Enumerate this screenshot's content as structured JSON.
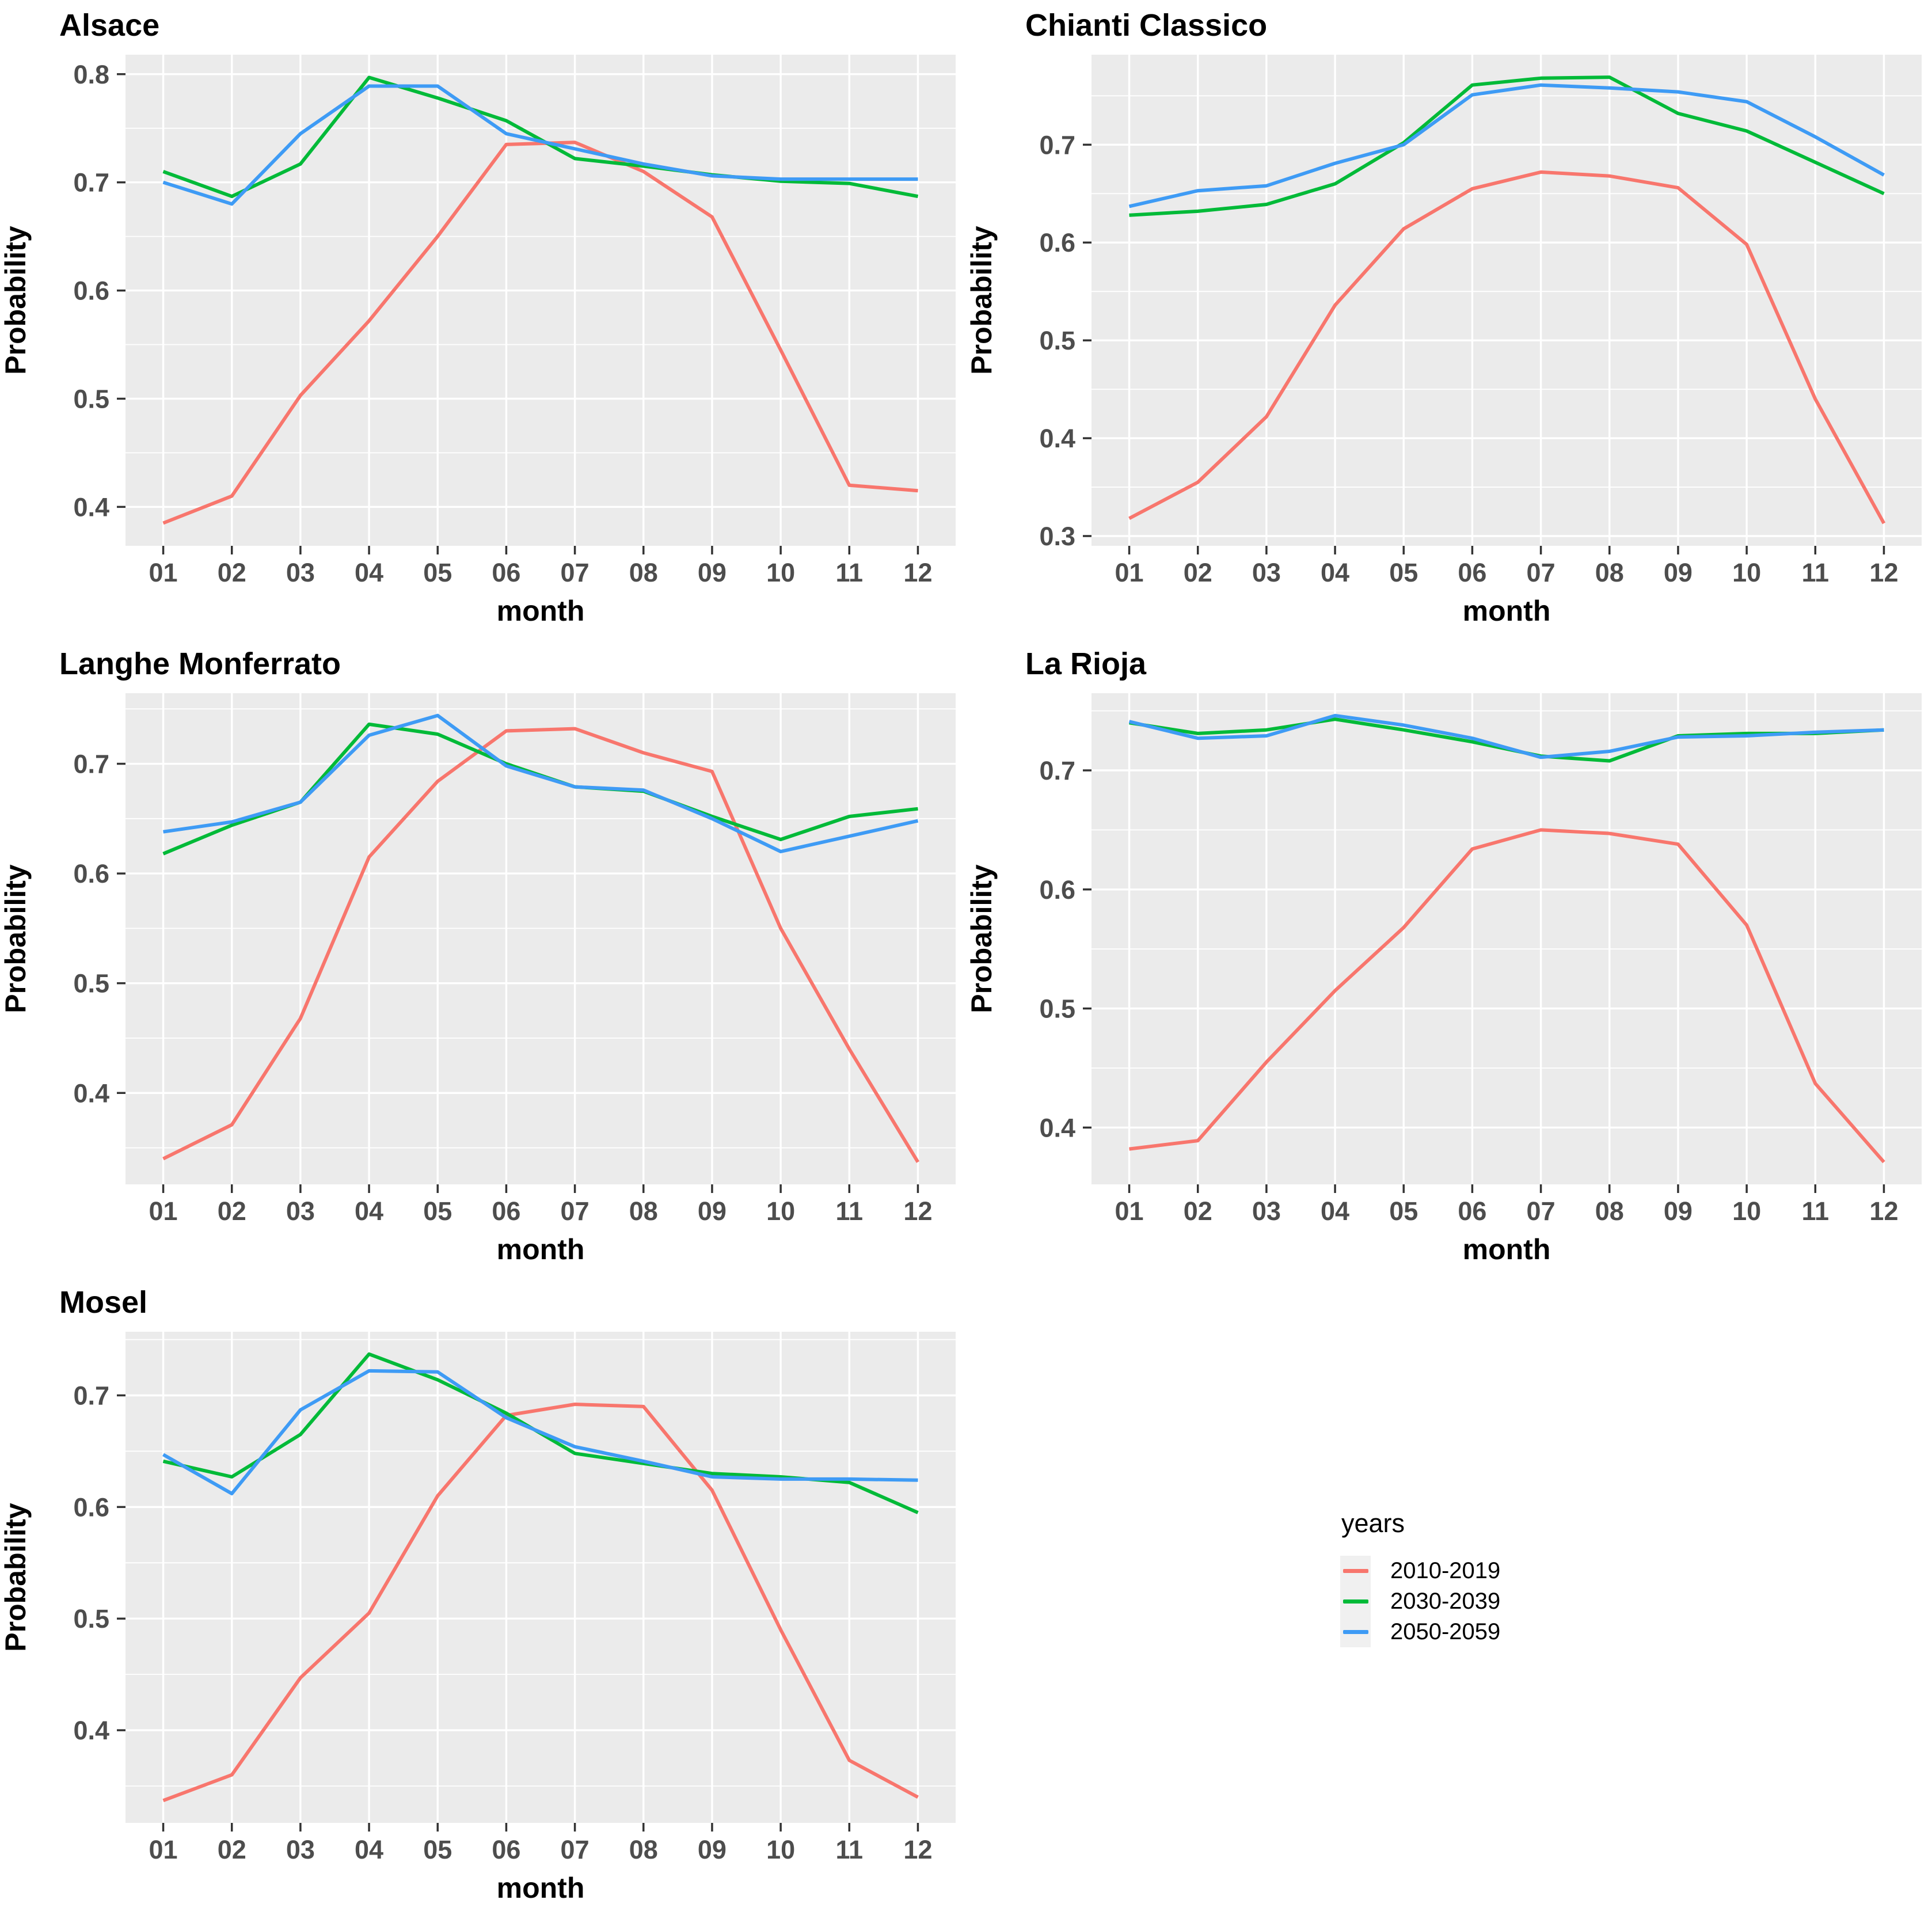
{
  "page": {
    "background": "#FFFFFF"
  },
  "style": {
    "panel_fill": "#EBEBEB",
    "grid_color": "#FFFFFF",
    "axis_tick_color": "#333333",
    "tick_label_color": "#4D4D4D",
    "title_color": "#000000"
  },
  "legend": {
    "title": "years",
    "key_fill": "#F0F0F0",
    "entries": [
      {
        "label": "2010-2019",
        "color": "#F8766D"
      },
      {
        "label": "2030-2039",
        "color": "#00BA38"
      },
      {
        "label": "2050-2059",
        "color": "#3E9BF5"
      }
    ]
  },
  "chart_data": [
    {
      "type": "line",
      "title": "Alsace",
      "xlabel": "month",
      "ylabel": "Probability",
      "categories": [
        "01",
        "02",
        "03",
        "04",
        "05",
        "06",
        "07",
        "08",
        "09",
        "10",
        "11",
        "12"
      ],
      "yticks": [
        0.4,
        0.5,
        0.6,
        0.7,
        0.8
      ],
      "ylim": [
        0.364,
        0.818
      ],
      "legend_position": "none",
      "grid": true,
      "series": [
        {
          "name": "2010-2019",
          "color": "#F8766D",
          "values": [
            0.385,
            0.41,
            0.503,
            0.572,
            0.65,
            0.735,
            0.737,
            0.71,
            0.668,
            0.545,
            0.42,
            0.415
          ]
        },
        {
          "name": "2030-2039",
          "color": "#00BA38",
          "values": [
            0.71,
            0.687,
            0.717,
            0.797,
            0.778,
            0.757,
            0.722,
            0.715,
            0.707,
            0.701,
            0.699,
            0.687
          ]
        },
        {
          "name": "2050-2059",
          "color": "#3E9BF5",
          "values": [
            0.7,
            0.68,
            0.745,
            0.789,
            0.789,
            0.745,
            0.731,
            0.717,
            0.706,
            0.703,
            0.703,
            0.703
          ]
        }
      ]
    },
    {
      "type": "line",
      "title": "Chianti Classico",
      "xlabel": "month",
      "ylabel": "Probability",
      "categories": [
        "01",
        "02",
        "03",
        "04",
        "05",
        "06",
        "07",
        "08",
        "09",
        "10",
        "11",
        "12"
      ],
      "yticks": [
        0.3,
        0.4,
        0.5,
        0.6,
        0.7
      ],
      "ylim": [
        0.29,
        0.792
      ],
      "legend_position": "none",
      "grid": true,
      "series": [
        {
          "name": "2010-2019",
          "color": "#F8766D",
          "values": [
            0.318,
            0.355,
            0.422,
            0.536,
            0.614,
            0.655,
            0.672,
            0.668,
            0.656,
            0.598,
            0.44,
            0.313
          ]
        },
        {
          "name": "2030-2039",
          "color": "#00BA38",
          "values": [
            0.628,
            0.632,
            0.639,
            0.66,
            0.702,
            0.761,
            0.768,
            0.769,
            0.732,
            0.714,
            0.682,
            0.65
          ]
        },
        {
          "name": "2050-2059",
          "color": "#3E9BF5",
          "values": [
            0.637,
            0.653,
            0.658,
            0.681,
            0.7,
            0.751,
            0.761,
            0.758,
            0.754,
            0.744,
            0.708,
            0.669
          ]
        }
      ]
    },
    {
      "type": "line",
      "title": "Langhe Monferrato",
      "xlabel": "month",
      "ylabel": "Probability",
      "categories": [
        "01",
        "02",
        "03",
        "04",
        "05",
        "06",
        "07",
        "08",
        "09",
        "10",
        "11",
        "12"
      ],
      "yticks": [
        0.4,
        0.5,
        0.6,
        0.7
      ],
      "ylim": [
        0.3167,
        0.7643
      ],
      "legend_position": "none",
      "grid": true,
      "series": [
        {
          "name": "2010-2019",
          "color": "#F8766D",
          "values": [
            0.34,
            0.371,
            0.468,
            0.615,
            0.684,
            0.73,
            0.732,
            0.71,
            0.693,
            0.55,
            0.44,
            0.337
          ]
        },
        {
          "name": "2030-2039",
          "color": "#00BA38",
          "values": [
            0.618,
            0.644,
            0.665,
            0.736,
            0.727,
            0.7,
            0.679,
            0.675,
            0.652,
            0.631,
            0.652,
            0.659
          ]
        },
        {
          "name": "2050-2059",
          "color": "#3E9BF5",
          "values": [
            0.638,
            0.647,
            0.665,
            0.726,
            0.744,
            0.698,
            0.679,
            0.676,
            0.65,
            0.62,
            0.634,
            0.648
          ]
        }
      ]
    },
    {
      "type": "line",
      "title": "La Rioja",
      "xlabel": "month",
      "ylabel": "Probability",
      "categories": [
        "01",
        "02",
        "03",
        "04",
        "05",
        "06",
        "07",
        "08",
        "09",
        "10",
        "11",
        "12"
      ],
      "yticks": [
        0.4,
        0.5,
        0.6,
        0.7
      ],
      "ylim": [
        0.3523,
        0.7648
      ],
      "legend_position": "none",
      "grid": true,
      "series": [
        {
          "name": "2010-2019",
          "color": "#F8766D",
          "values": [
            0.382,
            0.389,
            0.455,
            0.515,
            0.568,
            0.634,
            0.65,
            0.647,
            0.638,
            0.57,
            0.437,
            0.371
          ]
        },
        {
          "name": "2030-2039",
          "color": "#00BA38",
          "values": [
            0.74,
            0.731,
            0.734,
            0.743,
            0.734,
            0.724,
            0.712,
            0.708,
            0.729,
            0.731,
            0.731,
            0.734
          ]
        },
        {
          "name": "2050-2059",
          "color": "#3E9BF5",
          "values": [
            0.741,
            0.727,
            0.729,
            0.746,
            0.738,
            0.727,
            0.711,
            0.716,
            0.728,
            0.729,
            0.732,
            0.734
          ]
        }
      ]
    },
    {
      "type": "line",
      "title": "Mosel",
      "xlabel": "month",
      "ylabel": "Probability",
      "categories": [
        "01",
        "02",
        "03",
        "04",
        "05",
        "06",
        "07",
        "08",
        "09",
        "10",
        "11",
        "12"
      ],
      "yticks": [
        0.4,
        0.5,
        0.6,
        0.7
      ],
      "ylim": [
        0.317,
        0.757
      ],
      "legend_position": "none",
      "grid": true,
      "series": [
        {
          "name": "2010-2019",
          "color": "#F8766D",
          "values": [
            0.337,
            0.36,
            0.447,
            0.505,
            0.61,
            0.682,
            0.692,
            0.69,
            0.615,
            0.49,
            0.373,
            0.34
          ]
        },
        {
          "name": "2030-2039",
          "color": "#00BA38",
          "values": [
            0.641,
            0.627,
            0.665,
            0.737,
            0.714,
            0.684,
            0.648,
            0.639,
            0.63,
            0.627,
            0.622,
            0.595
          ]
        },
        {
          "name": "2050-2059",
          "color": "#3E9BF5",
          "values": [
            0.647,
            0.612,
            0.687,
            0.722,
            0.721,
            0.68,
            0.654,
            0.641,
            0.627,
            0.625,
            0.625,
            0.624
          ]
        }
      ]
    }
  ]
}
